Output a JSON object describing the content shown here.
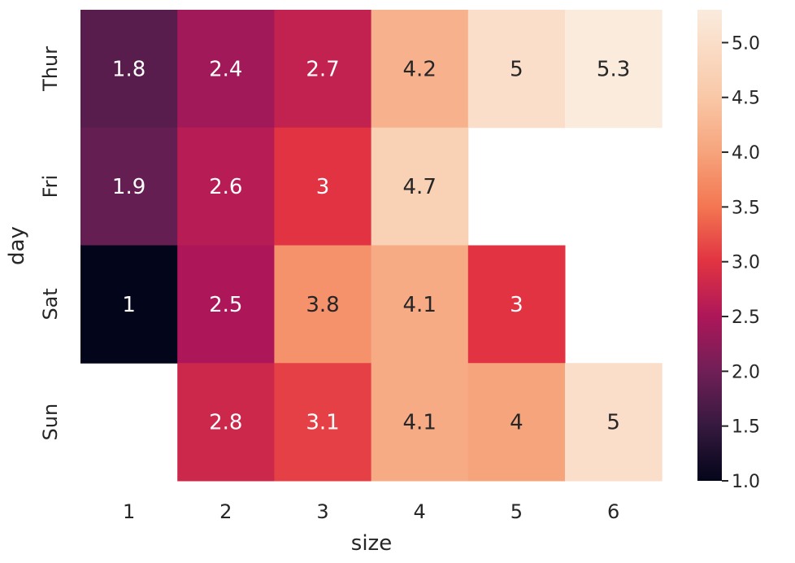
{
  "chart_data": {
    "type": "heatmap",
    "title": "",
    "xlabel": "size",
    "ylabel": "day",
    "x_categories": [
      "1",
      "2",
      "3",
      "4",
      "5",
      "6"
    ],
    "y_categories": [
      "Thur",
      "Fri",
      "Sat",
      "Sun"
    ],
    "values": [
      [
        1.8,
        2.4,
        2.7,
        4.2,
        5,
        5.3
      ],
      [
        1.9,
        2.6,
        3,
        4.7,
        null,
        null
      ],
      [
        1,
        2.5,
        3.8,
        4.1,
        3,
        null
      ],
      [
        null,
        2.8,
        3.1,
        4.1,
        4,
        5
      ]
    ],
    "annotations": [
      [
        "1.8",
        "2.4",
        "2.7",
        "4.2",
        "5",
        "5.3"
      ],
      [
        "1.9",
        "2.6",
        "3",
        "4.7",
        "",
        ""
      ],
      [
        "1",
        "2.5",
        "3.8",
        "4.1",
        "3",
        ""
      ],
      [
        "",
        "2.8",
        "3.1",
        "4.1",
        "4",
        "5"
      ]
    ],
    "colorbar": {
      "range": [
        1.0,
        5.3
      ],
      "ticks": [
        "1.0",
        "1.5",
        "2.0",
        "2.5",
        "3.0",
        "3.5",
        "4.0",
        "4.5",
        "5.0"
      ],
      "colormap": "rocket"
    },
    "grid": false
  }
}
